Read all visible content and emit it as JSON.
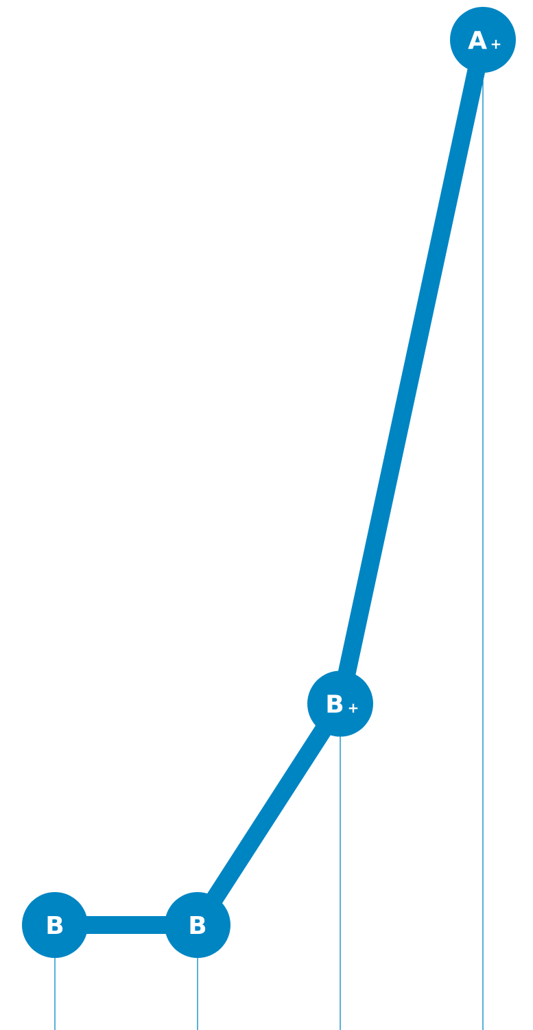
{
  "chart_data": {
    "type": "line",
    "title": "",
    "xlabel": "",
    "ylabel": "",
    "x": [
      1,
      2,
      3,
      4
    ],
    "scale": [
      "B",
      "B+",
      "A-",
      "A",
      "A+"
    ],
    "series": [
      {
        "values": [
          0,
          0,
          1,
          4
        ],
        "labels": [
          {
            "main": "B",
            "mod": ""
          },
          {
            "main": "B",
            "mod": ""
          },
          {
            "main": "B",
            "mod": "+"
          },
          {
            "main": "A",
            "mod": "+"
          }
        ]
      }
    ],
    "colors": {
      "line": "#0085C3",
      "marker": "#0085C3",
      "text": "#FFFFFF"
    },
    "grid": false,
    "legend": "none"
  }
}
